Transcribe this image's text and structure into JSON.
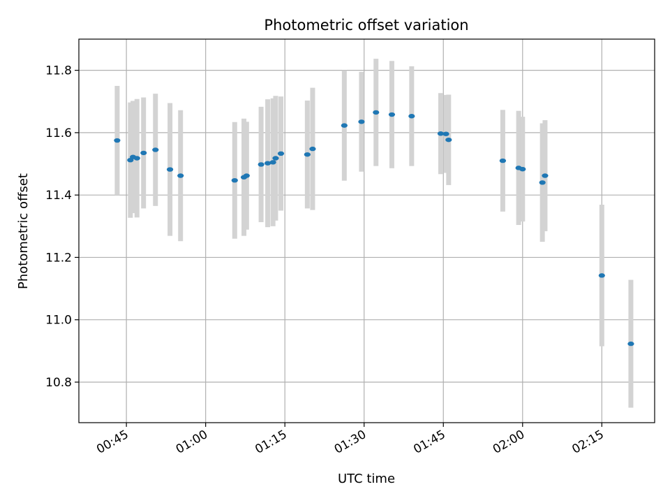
{
  "chart_data": {
    "type": "scatter",
    "title": "Photometric offset variation",
    "xlabel": "UTC time",
    "ylabel": "Photometric offset",
    "xlim": [
      "00:36",
      "02:25"
    ],
    "ylim": [
      10.67,
      11.9
    ],
    "x_ticks": [
      "00:45",
      "01:00",
      "01:15",
      "01:30",
      "01:45",
      "02:00",
      "02:15"
    ],
    "y_ticks": [
      10.8,
      11.0,
      11.2,
      11.4,
      11.6,
      11.8
    ],
    "grid": true,
    "colors": {
      "marker": "#1f77b4",
      "errorbar": "#d3d3d3",
      "grid": "#b0b0b0"
    },
    "series": [
      {
        "points": [
          {
            "x": "00:43:15",
            "y": 11.575,
            "err": 0.175
          },
          {
            "x": "00:45:45",
            "y": 11.512,
            "err": 0.185
          },
          {
            "x": "00:46:15",
            "y": 11.522,
            "err": 0.18
          },
          {
            "x": "00:47:00",
            "y": 11.518,
            "err": 0.19
          },
          {
            "x": "00:48:15",
            "y": 11.535,
            "err": 0.178
          },
          {
            "x": "00:50:30",
            "y": 11.545,
            "err": 0.18
          },
          {
            "x": "00:53:15",
            "y": 11.482,
            "err": 0.213
          },
          {
            "x": "00:55:15",
            "y": 11.462,
            "err": 0.21
          },
          {
            "x": "01:05:30",
            "y": 11.447,
            "err": 0.187
          },
          {
            "x": "01:07:15",
            "y": 11.457,
            "err": 0.188
          },
          {
            "x": "01:07:45",
            "y": 11.462,
            "err": 0.173
          },
          {
            "x": "01:10:30",
            "y": 11.498,
            "err": 0.185
          },
          {
            "x": "01:11:45",
            "y": 11.502,
            "err": 0.205
          },
          {
            "x": "01:12:45",
            "y": 11.505,
            "err": 0.205
          },
          {
            "x": "01:13:15",
            "y": 11.518,
            "err": 0.2
          },
          {
            "x": "01:14:15",
            "y": 11.533,
            "err": 0.183
          },
          {
            "x": "01:19:15",
            "y": 11.53,
            "err": 0.173
          },
          {
            "x": "01:20:15",
            "y": 11.548,
            "err": 0.196
          },
          {
            "x": "01:26:15",
            "y": 11.623,
            "err": 0.177
          },
          {
            "x": "01:29:30",
            "y": 11.635,
            "err": 0.16
          },
          {
            "x": "01:32:15",
            "y": 11.665,
            "err": 0.172
          },
          {
            "x": "01:35:15",
            "y": 11.658,
            "err": 0.172
          },
          {
            "x": "01:39:00",
            "y": 11.653,
            "err": 0.16
          },
          {
            "x": "01:44:30",
            "y": 11.597,
            "err": 0.13
          },
          {
            "x": "01:45:30",
            "y": 11.596,
            "err": 0.125
          },
          {
            "x": "01:46:00",
            "y": 11.577,
            "err": 0.145
          },
          {
            "x": "01:56:15",
            "y": 11.51,
            "err": 0.163
          },
          {
            "x": "01:59:15",
            "y": 11.487,
            "err": 0.183
          },
          {
            "x": "02:00:00",
            "y": 11.483,
            "err": 0.168
          },
          {
            "x": "02:03:45",
            "y": 11.44,
            "err": 0.19
          },
          {
            "x": "02:04:15",
            "y": 11.462,
            "err": 0.178
          },
          {
            "x": "02:15:00",
            "y": 11.142,
            "err": 0.227
          },
          {
            "x": "02:20:30",
            "y": 10.923,
            "err": 0.205
          }
        ]
      }
    ]
  }
}
